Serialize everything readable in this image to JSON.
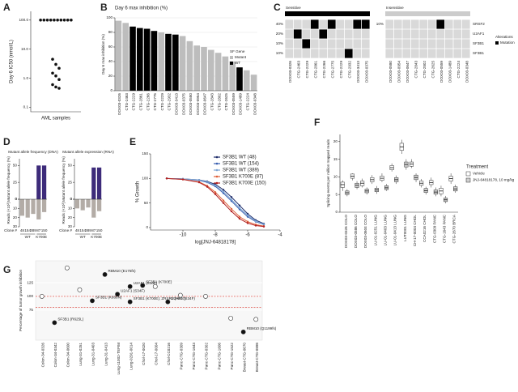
{
  "chart_data": [
    {
      "panel": "A",
      "type": "dot",
      "ylabel": "Day 6 IC50 (nmol/L)",
      "xlabel": "AML samples",
      "log": true,
      "color": "#111111",
      "values": [
        100,
        100,
        100,
        100,
        100,
        100,
        100,
        100,
        100,
        100,
        4.5,
        3,
        2.2,
        1.5,
        1.2,
        0.9,
        0.6,
        0.5,
        0.45
      ],
      "ylim": [
        0.07,
        200
      ],
      "yticks": [
        {
          "value": 0.1,
          "label": "0.1"
        },
        {
          "value": 1,
          "label": "1.0"
        },
        {
          "value": 10,
          "label": "10.0"
        },
        {
          "value": 100,
          "label": "100.0"
        }
      ]
    },
    {
      "panel": "B",
      "type": "bar",
      "title": "Day 6 max inhibition (%)",
      "ylabel": "Day 6 max inhibition (%)",
      "categories": [
        "DOX03-0326",
        "CTG-2463",
        "CTG-2229",
        "CTG-2861",
        "CTG-2266",
        "CTG-2775",
        "CTG-2229",
        "CTG-2932",
        "DOX03-3413",
        "DOX03-0375",
        "DOX03-0580",
        "DOX03-0954",
        "DOX03-0647",
        "CTG-2843",
        "CTG-2802",
        "CTG-2625",
        "DOX03-0559",
        "DOX03-1489",
        "CTG-2224",
        "DOX03-0348"
      ],
      "values": [
        96,
        93,
        88,
        86,
        85,
        82,
        80,
        78,
        77,
        75,
        68,
        62,
        60,
        56,
        52,
        47,
        40,
        32,
        28,
        22
      ],
      "colors": [
        "#bdbdbd",
        "#bdbdbd",
        "#000000",
        "#000000",
        "#000000",
        "#000000",
        "#bdbdbd",
        "#000000",
        "#000000",
        "#bdbdbd",
        "#bdbdbd",
        "#bdbdbd",
        "#bdbdbd",
        "#bdbdbd",
        "#bdbdbd",
        "#bdbdbd",
        "#bdbdbd",
        "#000000",
        "#bdbdbd",
        "#bdbdbd"
      ],
      "ylim": [
        0,
        100
      ],
      "yticks": [
        0,
        20,
        40,
        60,
        80,
        100
      ],
      "legend": {
        "title": "SF Gene",
        "entries": [
          {
            "name": "Mutant",
            "color": "#bdbdbd"
          },
          {
            "name": "WT",
            "color": "#000000"
          }
        ]
      }
    },
    {
      "panel": "C",
      "type": "heatmap",
      "rows": [
        "SRSF2",
        "U2AF1",
        "SF3B1",
        "SF3B1"
      ],
      "colors": {
        "absent": "#d9d9d9",
        "present": "#000000"
      },
      "groups": [
        {
          "name": "Sensitive",
          "row_labels": [
            "40%",
            "20%",
            "10%",
            "10%"
          ],
          "columns": [
            "DOX03-0326",
            "CTG-2463",
            "CTG-2229",
            "CTG-2861",
            "CTG-2266",
            "CTG-2775",
            "CTG-2229",
            "CTG-2932",
            "DOX03-3413",
            "DOX03-0375"
          ],
          "cells": [
            [
              0,
              0,
              0,
              1,
              0,
              1,
              0,
              0,
              1,
              1
            ],
            [
              0,
              1,
              0,
              0,
              1,
              0,
              0,
              0,
              0,
              0
            ],
            [
              0,
              0,
              1,
              0,
              0,
              0,
              0,
              0,
              0,
              0
            ],
            [
              0,
              0,
              0,
              0,
              0,
              0,
              0,
              1,
              0,
              0
            ]
          ]
        },
        {
          "name": "Insensitive",
          "row_labels": [
            "10%",
            null,
            null,
            null
          ],
          "columns": [
            "DOX03-0580",
            "DOX03-0954",
            "DOX03-0647",
            "CTG-2843",
            "CTG-2802",
            "CTG-2625",
            "DOX03-0559",
            "DOX03-1489",
            "CTG-2224",
            "DOX03-0348"
          ],
          "cells": [
            [
              0,
              0,
              0,
              0,
              0,
              0,
              1,
              0,
              0,
              0
            ],
            [
              0,
              0,
              0,
              0,
              0,
              0,
              0,
              0,
              0,
              0
            ],
            [
              0,
              0,
              0,
              0,
              0,
              0,
              0,
              0,
              0,
              0
            ],
            [
              0,
              0,
              0,
              0,
              0,
              0,
              0,
              0,
              0,
              0
            ]
          ]
        }
      ],
      "legend": {
        "title": "Alterations",
        "entries": [
          {
            "name": "Mutation",
            "color": "#000000"
          }
        ]
      }
    },
    {
      "panel": "D",
      "type": "mirror-bar",
      "title": "Mutant allele frequency (DNA)",
      "ylabel": "Mutant allele frequency (%)",
      "ylabel2": "Reads (×10³)",
      "category_title": "Clone #",
      "categories": [
        "48",
        "154",
        "389",
        "87",
        "150"
      ],
      "group_of": [
        "WT",
        "WT",
        "WT",
        "K700E",
        "K700E"
      ],
      "values": [
        0,
        0,
        0,
        50,
        50
      ],
      "values2": [
        18,
        20,
        16,
        22,
        14
      ],
      "color": "#3d2b7a",
      "color2": "#b3aca6",
      "ylim": [
        0,
        60
      ],
      "yticks": [
        0,
        25,
        50
      ],
      "y2lim": [
        0,
        30
      ],
      "y2ticks": [
        0,
        10,
        20,
        30
      ]
    },
    {
      "panel": null,
      "type": "mirror-bar",
      "title": "Mutant allele expression (RNA)",
      "ylabel": "Mutant allele frequency (%)",
      "ylabel2": "Reads (×10³)",
      "category_title": "Clone #",
      "categories": [
        "48",
        "154",
        "389",
        "87",
        "150"
      ],
      "group_of": [
        "WT",
        "WT",
        "WT",
        "K700E",
        "K700E"
      ],
      "values": [
        0,
        0,
        0,
        47,
        47
      ],
      "values2": [
        10,
        12,
        9,
        20,
        13
      ],
      "color": "#3d2b7a",
      "color2": "#b3aca6",
      "ylim": [
        0,
        60
      ],
      "yticks": [
        0,
        25,
        50
      ],
      "y2lim": [
        0,
        30
      ],
      "y2ticks": [
        0,
        10,
        20,
        30
      ]
    },
    {
      "panel": "E",
      "type": "line",
      "xlabel": "log[JNJ-64818178]",
      "ylabel": "% Growth",
      "x": [
        -11,
        -10,
        -9,
        -8.5,
        -8,
        -7.5,
        -7,
        -6.5,
        -6,
        -5.5,
        -5
      ],
      "xlim": [
        -12,
        -4
      ],
      "xticks": [
        -10,
        -8,
        -6,
        -4
      ],
      "ylim": [
        -5,
        150
      ],
      "yticks": [
        0,
        50,
        100,
        150
      ],
      "series": [
        {
          "name": "SF3B1 WT (48)",
          "color": "#1f2d6b",
          "values": [
            100,
            99,
            97,
            94,
            88,
            77,
            62,
            45,
            28,
            15,
            8
          ]
        },
        {
          "name": "SF3B1 WT (154)",
          "color": "#3a5fb0",
          "values": [
            100,
            99,
            96,
            92,
            84,
            70,
            54,
            37,
            22,
            12,
            6
          ]
        },
        {
          "name": "SF3B1 WT (389)",
          "color": "#7fa7d6",
          "values": [
            100,
            99,
            97,
            93,
            86,
            73,
            57,
            40,
            25,
            13,
            7
          ]
        },
        {
          "name": "SF3B1 K700E (87)",
          "color": "#e0603a",
          "values": [
            100,
            98,
            93,
            85,
            72,
            55,
            38,
            22,
            12,
            6,
            3
          ]
        },
        {
          "name": "SF3B1 K700E (150)",
          "color": "#b22222",
          "values": [
            100,
            98,
            92,
            83,
            68,
            50,
            33,
            18,
            9,
            4,
            2
          ]
        }
      ]
    },
    {
      "panel": "F",
      "type": "box",
      "ylabel": "Splicing events per million mapped reads",
      "ylim": [
        0,
        22
      ],
      "yticks": [
        0,
        5,
        10,
        15,
        20
      ],
      "legend_title": "Treatment",
      "categories": [
        "DOX03-0326 COLO",
        "DOX03-0586 COLO",
        "DOX03-0604 COLO",
        "LU-01-0251 LUNG",
        "LU-01-0403 LUNG",
        "LU-01-0413 LUNG",
        "LUT0001 LUNG",
        "CH-17-0004 CHOL",
        "CCA0216 CHOL",
        "CTG-0309 PANC",
        "CTG-1643 PANC",
        "CTG-2670 BRCA"
      ],
      "series": [
        {
          "name": "Vehicle",
          "color": "#ffffff",
          "values": [
            [
              6,
              7,
              7.8,
              8.5,
              9
            ],
            [
              9,
              9.6,
              10.2,
              10.8,
              11
            ],
            [
              7,
              7.5,
              8.2,
              8.8,
              9.5
            ],
            [
              8,
              8.6,
              9.2,
              9.8,
              10.5
            ],
            [
              8.5,
              9,
              9.6,
              10.2,
              11
            ],
            [
              11.5,
              12,
              12.6,
              13.2,
              13.8
            ],
            [
              16.5,
              17.5,
              18.5,
              19.5,
              20.5
            ],
            [
              12.5,
              13,
              13.6,
              14.2,
              15
            ],
            [
              7,
              7.6,
              8.2,
              8.8,
              9.4
            ],
            [
              7,
              7.8,
              8.4,
              9,
              9.8
            ],
            [
              4.5,
              5.2,
              6,
              6.8,
              7.5
            ],
            [
              8,
              8.8,
              9.5,
              10.2,
              11
            ]
          ]
        },
        {
          "name": "JNJ-64818178, 10 mg/kg",
          "color": "#d0d0d0",
          "values": [
            [
              4.5,
              5,
              5.5,
              6,
              6.5
            ],
            [
              6.5,
              7,
              7.6,
              8.2,
              8.8
            ],
            [
              5,
              5.5,
              6,
              6.5,
              7
            ],
            [
              5.2,
              5.8,
              6.3,
              6.8,
              7.4
            ],
            [
              6,
              6.4,
              6.9,
              7.5,
              8
            ],
            [
              8,
              8.6,
              9.2,
              9.8,
              10.4
            ],
            [
              12,
              12.8,
              13.5,
              14.2,
              15
            ],
            [
              8.5,
              9.2,
              9.8,
              10.5,
              11
            ],
            [
              5,
              5.6,
              6.1,
              6.7,
              7.2
            ],
            [
              4.5,
              5.1,
              5.7,
              6.3,
              7
            ],
            [
              2.5,
              3,
              3.5,
              4,
              4.6
            ],
            [
              5.5,
              6,
              6.6,
              7.2,
              7.8
            ]
          ]
        }
      ]
    },
    {
      "panel": "G",
      "type": "scatter",
      "ylabel": "Percentage of tumor growth inhibition",
      "ylim": [
        20,
        165
      ],
      "yticks": [
        75,
        100,
        125
      ],
      "reference_lines": [
        100,
        80
      ],
      "reference_color": "#d9342b",
      "categories": [
        "Colon-34-0326",
        "Colon-34-0342",
        "Colon-34-0600",
        "Lung-31-0251",
        "Lung-31-0403",
        "Lung-31-0413",
        "Lung-11002-TEFIM",
        "Lung-0291-0014",
        "Chol-17-0020",
        "Chol-17-0004",
        "Chol-CC0216",
        "Panc-CTG-0309",
        "Panc-CTG-1643",
        "Panc-CTG-0302",
        "Panc-CTG-1606",
        "Panc-CTG-1522",
        "Breast-CTG-0670",
        "Breast-CTG-0898"
      ],
      "series": [
        {
          "values": [
            100,
            52,
            152,
            112,
            92,
            140,
            104,
            118,
            120,
            118,
            90,
            102,
            null,
            100,
            null,
            60,
            35,
            58
          ],
          "filled": [
            false,
            true,
            false,
            false,
            true,
            true,
            true,
            true,
            true,
            false,
            true,
            false,
            null,
            false,
            null,
            false,
            true,
            false
          ],
          "annotations": [
            null,
            "SF3B1 (R625L)",
            null,
            null,
            "SF3B1 (K666N)",
            "RBM10 (E175fs)",
            "U2AF1 (S34F)",
            "U2AF1 (S34F)",
            "SF3B1 (K700E)",
            null,
            "U2AF1 (S34F)",
            null,
            null,
            null,
            null,
            null,
            "RBM10 (Q1199fs)",
            null
          ]
        },
        {
          "values": [
            null,
            null,
            null,
            null,
            null,
            null,
            null,
            90,
            null,
            null,
            null,
            null,
            null,
            null,
            null,
            null,
            null,
            null
          ],
          "filled": [
            null,
            null,
            null,
            null,
            null,
            null,
            null,
            true,
            null,
            null,
            null,
            null,
            null,
            null,
            null,
            null,
            null,
            null
          ],
          "annotations": [
            null,
            null,
            null,
            null,
            null,
            null,
            null,
            "SF3B1 (K700E); ZRSR2 (H507)",
            null,
            null,
            null,
            null,
            null,
            null,
            null,
            null,
            null,
            null
          ]
        }
      ]
    }
  ]
}
